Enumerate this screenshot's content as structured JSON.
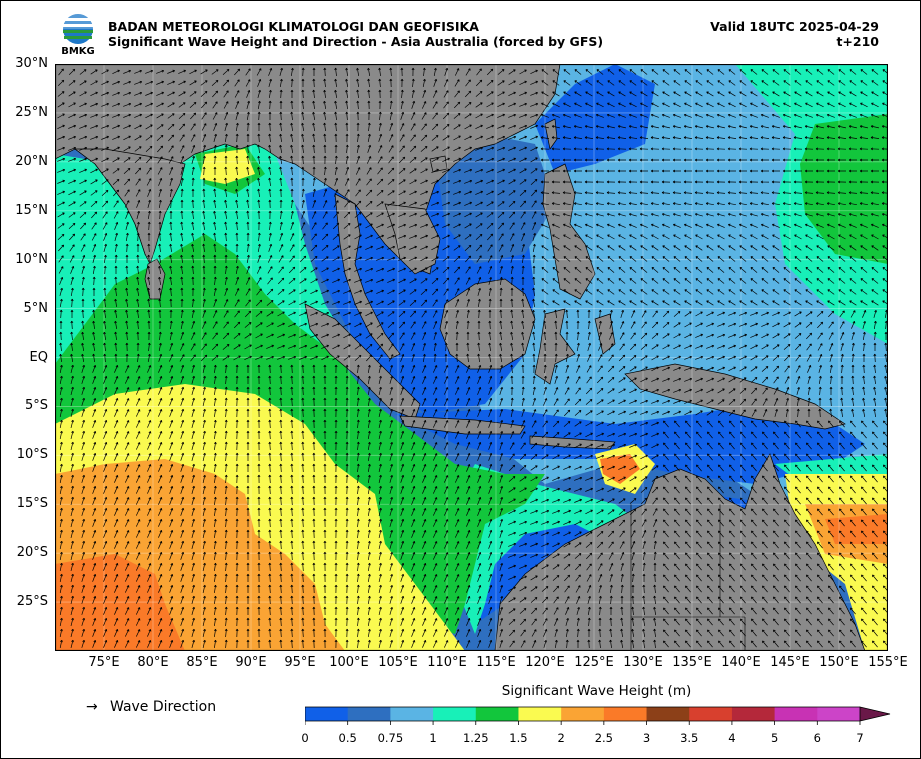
{
  "header": {
    "organization": "BADAN METEOROLOGI KLIMATOLOGI DAN GEOFISIKA",
    "subtitle": "Significant Wave Height and Direction - Asia Australia (forced by GFS)",
    "valid": "Valid 18UTC 2025-04-29",
    "lead_time": "t+210",
    "logo_text": "BMKG"
  },
  "axes": {
    "lat_labels": [
      "30°N",
      "25°N",
      "20°N",
      "15°N",
      "10°N",
      "5°N",
      "EQ",
      "5°S",
      "10°S",
      "15°S",
      "20°S",
      "25°S"
    ],
    "lat_values": [
      30,
      25,
      20,
      15,
      10,
      5,
      0,
      -5,
      -10,
      -15,
      -20,
      -25
    ],
    "lon_labels": [
      "75°E",
      "80°E",
      "85°E",
      "90°E",
      "95°E",
      "100°E",
      "105°E",
      "110°E",
      "115°E",
      "120°E",
      "125°E",
      "130°E",
      "135°E",
      "140°E",
      "145°E",
      "150°E",
      "155°E"
    ],
    "lon_values": [
      75,
      80,
      85,
      90,
      95,
      100,
      105,
      110,
      115,
      120,
      125,
      130,
      135,
      140,
      145,
      150,
      155
    ],
    "lon_range": [
      70,
      155
    ],
    "lat_range": [
      -30,
      30
    ]
  },
  "legend": {
    "arrow_glyph": "→",
    "arrow_label": "Wave Direction"
  },
  "colorbar": {
    "title": "Significant Wave Height (m)",
    "ticks": [
      "0",
      "0.5",
      "0.75",
      "1",
      "1.25",
      "1.5",
      "2",
      "2.5",
      "3",
      "3.5",
      "4",
      "5",
      "6",
      "7"
    ],
    "colors": [
      "#1060e8",
      "#2e6fc0",
      "#5ab4e4",
      "#18f0b8",
      "#12c63c",
      "#fafa50",
      "#faa434",
      "#fa7a28",
      "#8c4018",
      "#d8402e",
      "#b4283a",
      "#c832b4",
      "#cc44c8"
    ],
    "extend_color": "#6a1848"
  },
  "colors": {
    "land": "#8a8a8a",
    "frame": "#000000"
  }
}
